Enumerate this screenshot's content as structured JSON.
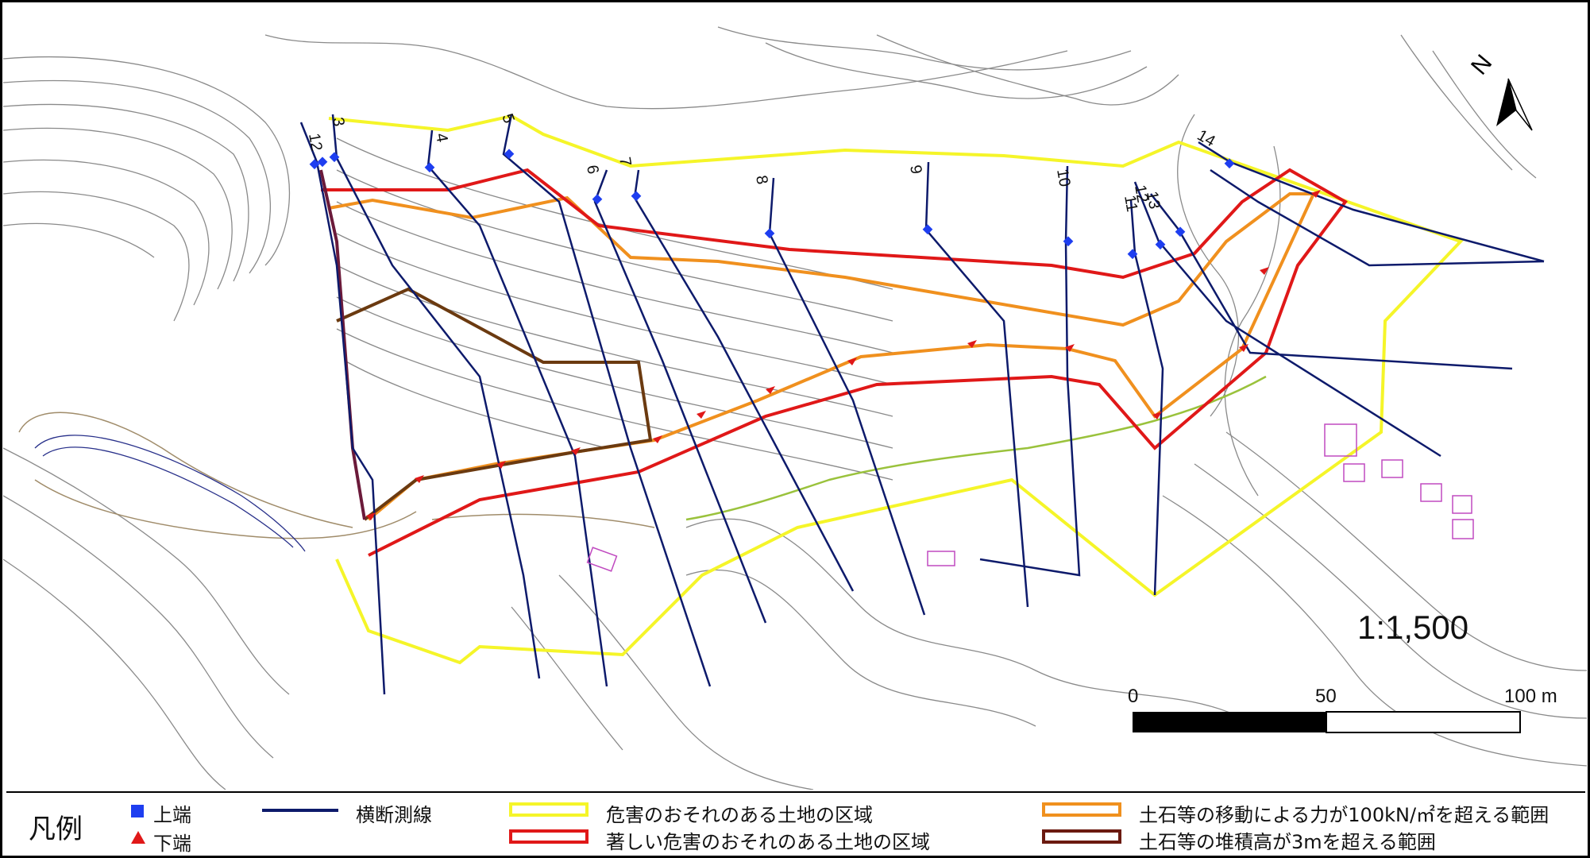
{
  "map": {
    "scale_text": "1:1,500",
    "north_label": "N",
    "scale_bar": {
      "labels": [
        "0",
        "50",
        "100 m"
      ]
    },
    "section_line_numbers": [
      "12",
      "3",
      "4",
      "5",
      "6",
      "7",
      "8",
      "9",
      "10",
      "11",
      "12",
      "13",
      "14"
    ],
    "colors": {
      "contour": "#7a7a7a",
      "section_line": "#0d1a6b",
      "hazard_zone": "#f5f529",
      "special_hazard_zone": "#e01818",
      "force_100kN": "#f0901e",
      "deposit_3m": "#6b3a10",
      "upper_end_marker": "#1e3ef0",
      "lower_end_marker": "#e01818"
    }
  },
  "legend": {
    "title": "凡例",
    "upper_end": "上端",
    "lower_end": "下端",
    "section_line": "横断測線",
    "hazard_zone": "危害のおそれのある土地の区域",
    "special_hazard_zone": "著しい危害のおそれのある土地の区域",
    "force_zone": "土石等の移動による力が100kN/㎡を超える範囲",
    "deposit_zone": "土石等の堆積高が3mを超える範囲"
  }
}
